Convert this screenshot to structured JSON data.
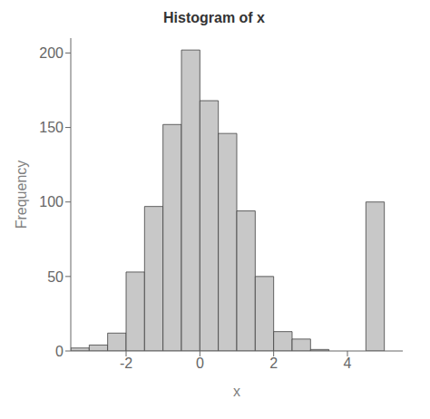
{
  "chart_data": {
    "type": "histogram",
    "title": "Histogram of x",
    "xlabel": "x",
    "ylabel": "Frequency",
    "bins": [
      -3.5,
      -3.0,
      -2.5,
      -2.0,
      -1.5,
      -1.0,
      -0.5,
      0.0,
      0.5,
      1.0,
      1.5,
      2.0,
      2.5,
      3.0,
      3.5,
      4.0,
      4.5,
      5.0,
      5.5
    ],
    "values": [
      2,
      4,
      12,
      53,
      97,
      152,
      202,
      168,
      146,
      94,
      50,
      13,
      8,
      1,
      0,
      0,
      100,
      0
    ],
    "color": "#c8c8c8",
    "xlim": [
      -3.5,
      5.5
    ],
    "ylim": [
      0,
      210
    ],
    "xticks": [
      -2,
      0,
      2,
      4
    ],
    "yticks": [
      0,
      50,
      100,
      150,
      200
    ],
    "grid": false
  }
}
